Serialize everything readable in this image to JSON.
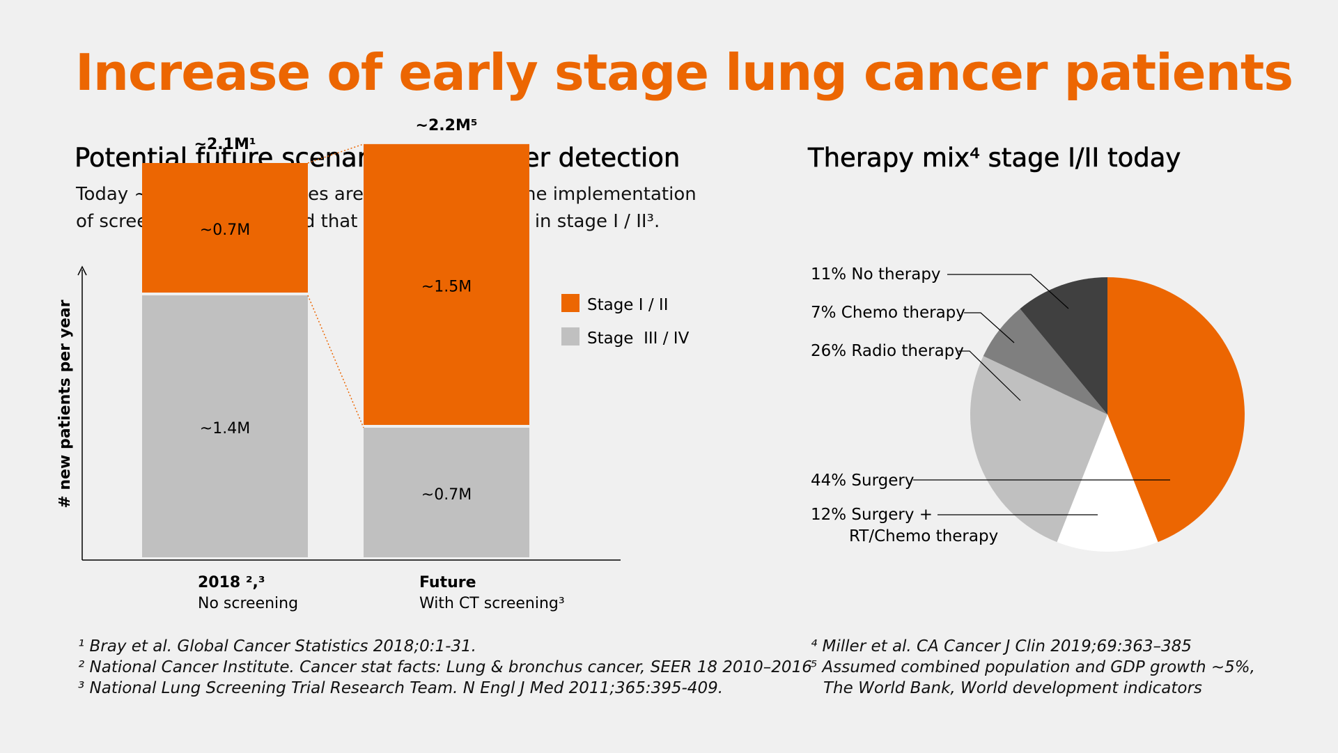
{
  "title": "Increase of early stage lung cancer patients",
  "left_section": {
    "title": "Potential future scenario lung cancer detection",
    "description_line1": "Today ~1/3 of all new cases are stage I / II. With the implementation",
    "description_line2": "of screening it is expected that ~2/3 are detected in stage I / II³."
  },
  "right_section": {
    "title": "Therapy mix⁴ stage I/II today"
  },
  "colors": {
    "orange": "#ec6602",
    "gray": "#c0c0c0",
    "title": "#ec6602"
  },
  "chart_data": [
    {
      "type": "bar",
      "stacked": true,
      "ylabel": "# new patients per year",
      "categories": [
        "2018",
        "Future"
      ],
      "category_bold_labels": [
        "2018 ²,³",
        "Future"
      ],
      "category_sub_labels": [
        "No screening",
        "With CT screening³"
      ],
      "totals": [
        2.1,
        2.2
      ],
      "total_labels": [
        "~2.1M¹",
        "~2.2M⁵"
      ],
      "series": [
        {
          "name": "Stage III / IV",
          "legend_label": "Stage  III / IV",
          "values": [
            1.4,
            0.7
          ],
          "labels": [
            "~1.4M",
            "~0.7M"
          ],
          "color": "#c0c0c0"
        },
        {
          "name": "Stage I / II",
          "legend_label": "Stage I / II",
          "values": [
            0.7,
            1.5
          ],
          "labels": [
            "~0.7M",
            "~1.5M"
          ],
          "color": "#ec6602"
        }
      ],
      "ylim": [
        0,
        2.6
      ],
      "grid": false
    },
    {
      "type": "pie",
      "slices": [
        {
          "label": "44% Surgery",
          "value": 44,
          "color": "#ec6602"
        },
        {
          "label": "12% Surgery + RT/Chemo therapy",
          "label_line1": "12% Surgery +",
          "label_line2": "RT/Chemo therapy",
          "value": 12,
          "color": "#ffffff"
        },
        {
          "label": "26% Radio therapy",
          "value": 26,
          "color": "#c0c0c0"
        },
        {
          "label": "7% Chemo therapy",
          "value": 7,
          "color": "#7f7f7f"
        },
        {
          "label": "11% No therapy",
          "value": 11,
          "color": "#404040"
        }
      ]
    }
  ],
  "footnotes_left": [
    "¹ Bray et al. Global Cancer Statistics 2018;0:1-31.",
    "² National Cancer Institute. Cancer stat facts: Lung & bronchus cancer, SEER 18 2010–2016",
    "³ National Lung Screening Trial Research Team. N Engl J Med 2011;365:395-409."
  ],
  "footnotes_right": [
    "⁴ Miller et al. CA Cancer J Clin 2019;69:363–385",
    "⁵ Assumed combined population and GDP growth ~5%,",
    "The World Bank, World development indicators"
  ]
}
